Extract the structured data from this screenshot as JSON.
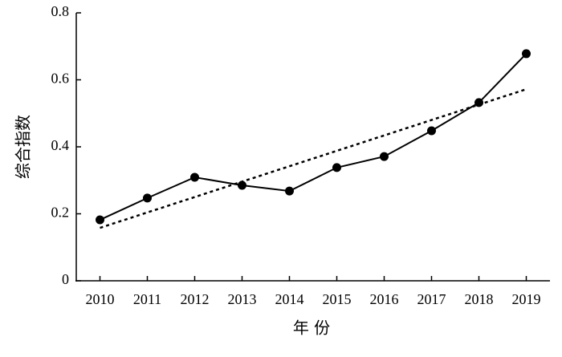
{
  "chart_data": {
    "type": "line",
    "x_label": "年 份",
    "y_label": "综合指数",
    "categories": [
      "2010",
      "2011",
      "2012",
      "2013",
      "2014",
      "2015",
      "2016",
      "2017",
      "2018",
      "2019"
    ],
    "series": [
      {
        "color": "#000000",
        "style": "solid",
        "markers": true,
        "values": [
          0.182,
          0.247,
          0.309,
          0.285,
          0.268,
          0.338,
          0.371,
          0.448,
          0.532,
          0.678
        ]
      },
      {
        "color": "#000000",
        "style": "dotted",
        "markers": false,
        "values": [
          0.158,
          0.204,
          0.25,
          0.296,
          0.342,
          0.388,
          0.434,
          0.48,
          0.526,
          0.572
        ]
      }
    ],
    "ylim": [
      0,
      0.8
    ],
    "yticks": [
      0,
      0.2,
      0.4,
      0.6,
      0.8
    ],
    "grid": false
  }
}
